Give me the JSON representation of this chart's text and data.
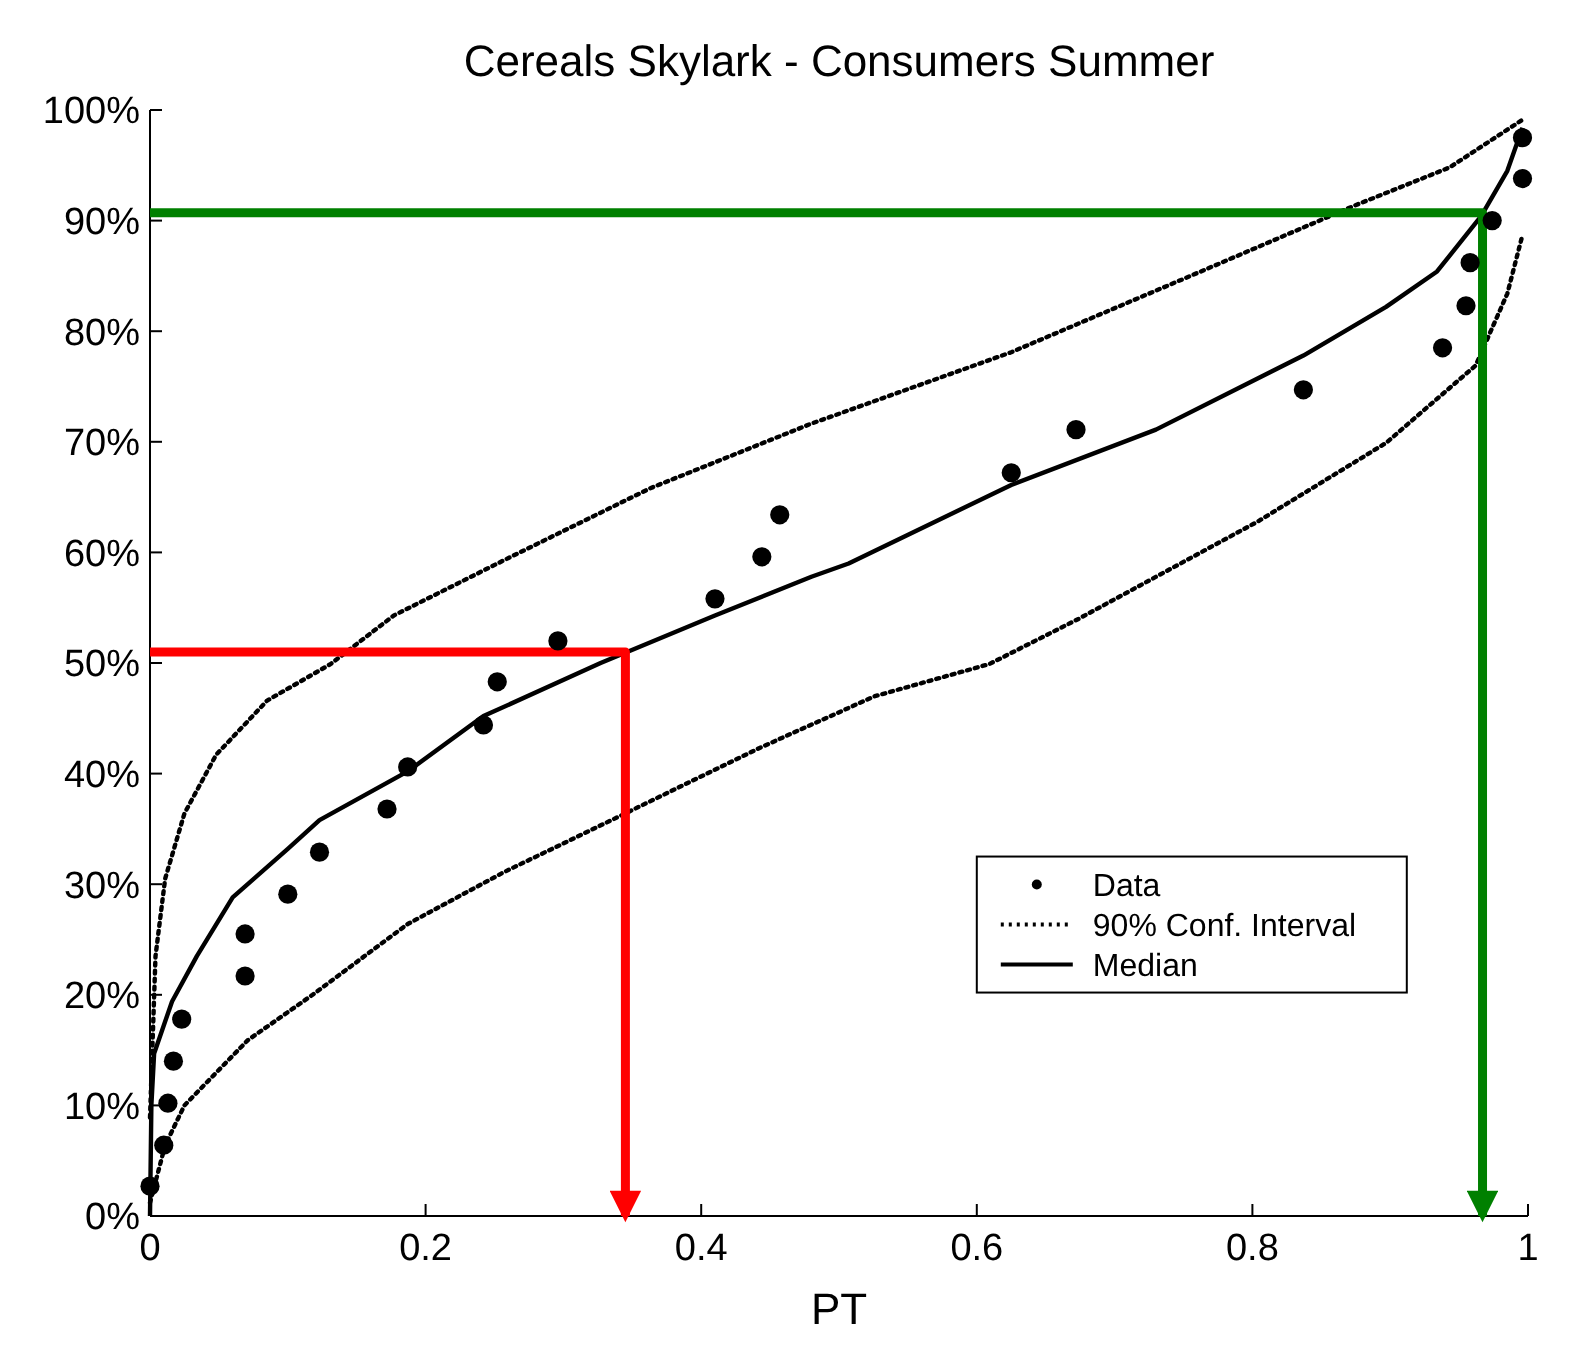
{
  "chart_data": {
    "type": "line",
    "title": "Cereals Skylark - Consumers Summer",
    "xlabel": "PT",
    "xlim": [
      0,
      1
    ],
    "ylim": [
      0,
      100
    ],
    "xticks": [
      0,
      0.2,
      0.4,
      0.6,
      0.8,
      1
    ],
    "yticks": [
      {
        "value": 0,
        "label": "0%"
      },
      {
        "value": 10,
        "label": "10%"
      },
      {
        "value": 20,
        "label": "20%"
      },
      {
        "value": 30,
        "label": "30%"
      },
      {
        "value": 40,
        "label": "40%"
      },
      {
        "value": 50,
        "label": "50%"
      },
      {
        "value": 60,
        "label": "60%"
      },
      {
        "value": 70,
        "label": "70%"
      },
      {
        "value": 80,
        "label": "80%"
      },
      {
        "value": 90,
        "label": "90%"
      },
      {
        "value": 100,
        "label": "100%"
      }
    ],
    "grid": false,
    "legend": "right",
    "series": [
      {
        "name": "Data",
        "type": "scatter",
        "marker": "circle",
        "color": "#000000",
        "x": [
          0,
          0.01,
          0.013,
          0.017,
          0.023,
          0.069,
          0.069,
          0.1,
          0.123,
          0.172,
          0.187,
          0.242,
          0.252,
          0.296,
          0.41,
          0.444,
          0.457,
          0.625,
          0.672,
          0.837,
          0.938,
          0.955,
          0.958,
          0.974,
          0.996,
          0.996
        ],
        "values": [
          2.7,
          6.4,
          10.2,
          14,
          17.8,
          21.7,
          25.5,
          29.1,
          32.9,
          36.8,
          40.6,
          44.4,
          48.3,
          52,
          55.8,
          59.6,
          63.4,
          67.2,
          71.1,
          74.7,
          78.5,
          82.3,
          86.2,
          90,
          93.8,
          97.5
        ]
      },
      {
        "name": "90% Conf. Interval",
        "line_style": "dotted",
        "color": "#000000",
        "x": [
          0,
          0.004,
          0.011,
          0.025,
          0.048,
          0.085,
          0.131,
          0.177,
          0.257,
          0.363,
          0.479,
          0.625,
          0.757,
          0.873,
          0.943,
          0.997
        ],
        "values": [
          8.9,
          23.5,
          30.5,
          36.4,
          41.7,
          46.6,
          49.9,
          54.3,
          59.3,
          65.8,
          71.6,
          78.1,
          85.1,
          91.3,
          94.8,
          99.2
        ]
      },
      {
        "line_style": "dotted",
        "color": "#000000",
        "x": [
          0,
          0.011,
          0.025,
          0.071,
          0.118,
          0.187,
          0.257,
          0.345,
          0.442,
          0.526,
          0.609,
          0.674,
          0.804,
          0.897,
          0.962,
          0.985,
          0.996
        ],
        "values": [
          1.2,
          6.4,
          10,
          15.9,
          20,
          26.4,
          31.1,
          36.4,
          42.3,
          47,
          49.9,
          54,
          62.8,
          69.9,
          76.9,
          83.4,
          88.7
        ]
      },
      {
        "name": "Median",
        "line_style": "solid",
        "color": "#000000",
        "x": [
          0,
          0.001,
          0.003,
          0.016,
          0.034,
          0.06,
          0.1,
          0.123,
          0.187,
          0.242,
          0.327,
          0.41,
          0.48,
          0.507,
          0.625,
          0.73,
          0.837,
          0.897,
          0.934,
          0.966,
          0.985,
          0.996
        ],
        "values": [
          0,
          10,
          14.7,
          19.4,
          23.5,
          28.8,
          33.2,
          35.8,
          40.2,
          45.2,
          50,
          54.3,
          57.8,
          59,
          66.1,
          71.1,
          77.8,
          82.2,
          85.4,
          90.4,
          94.5,
          98.4
        ]
      },
      {
        "line_style": "solid",
        "color": "#ff0000",
        "x": [
          0,
          0.345,
          0.345
        ],
        "values": [
          51,
          51,
          0
        ]
      },
      {
        "line_style": "solid",
        "color": "#008000",
        "x": [
          0,
          0.967,
          0.967
        ],
        "values": [
          90.7,
          90.7,
          0
        ]
      }
    ]
  }
}
